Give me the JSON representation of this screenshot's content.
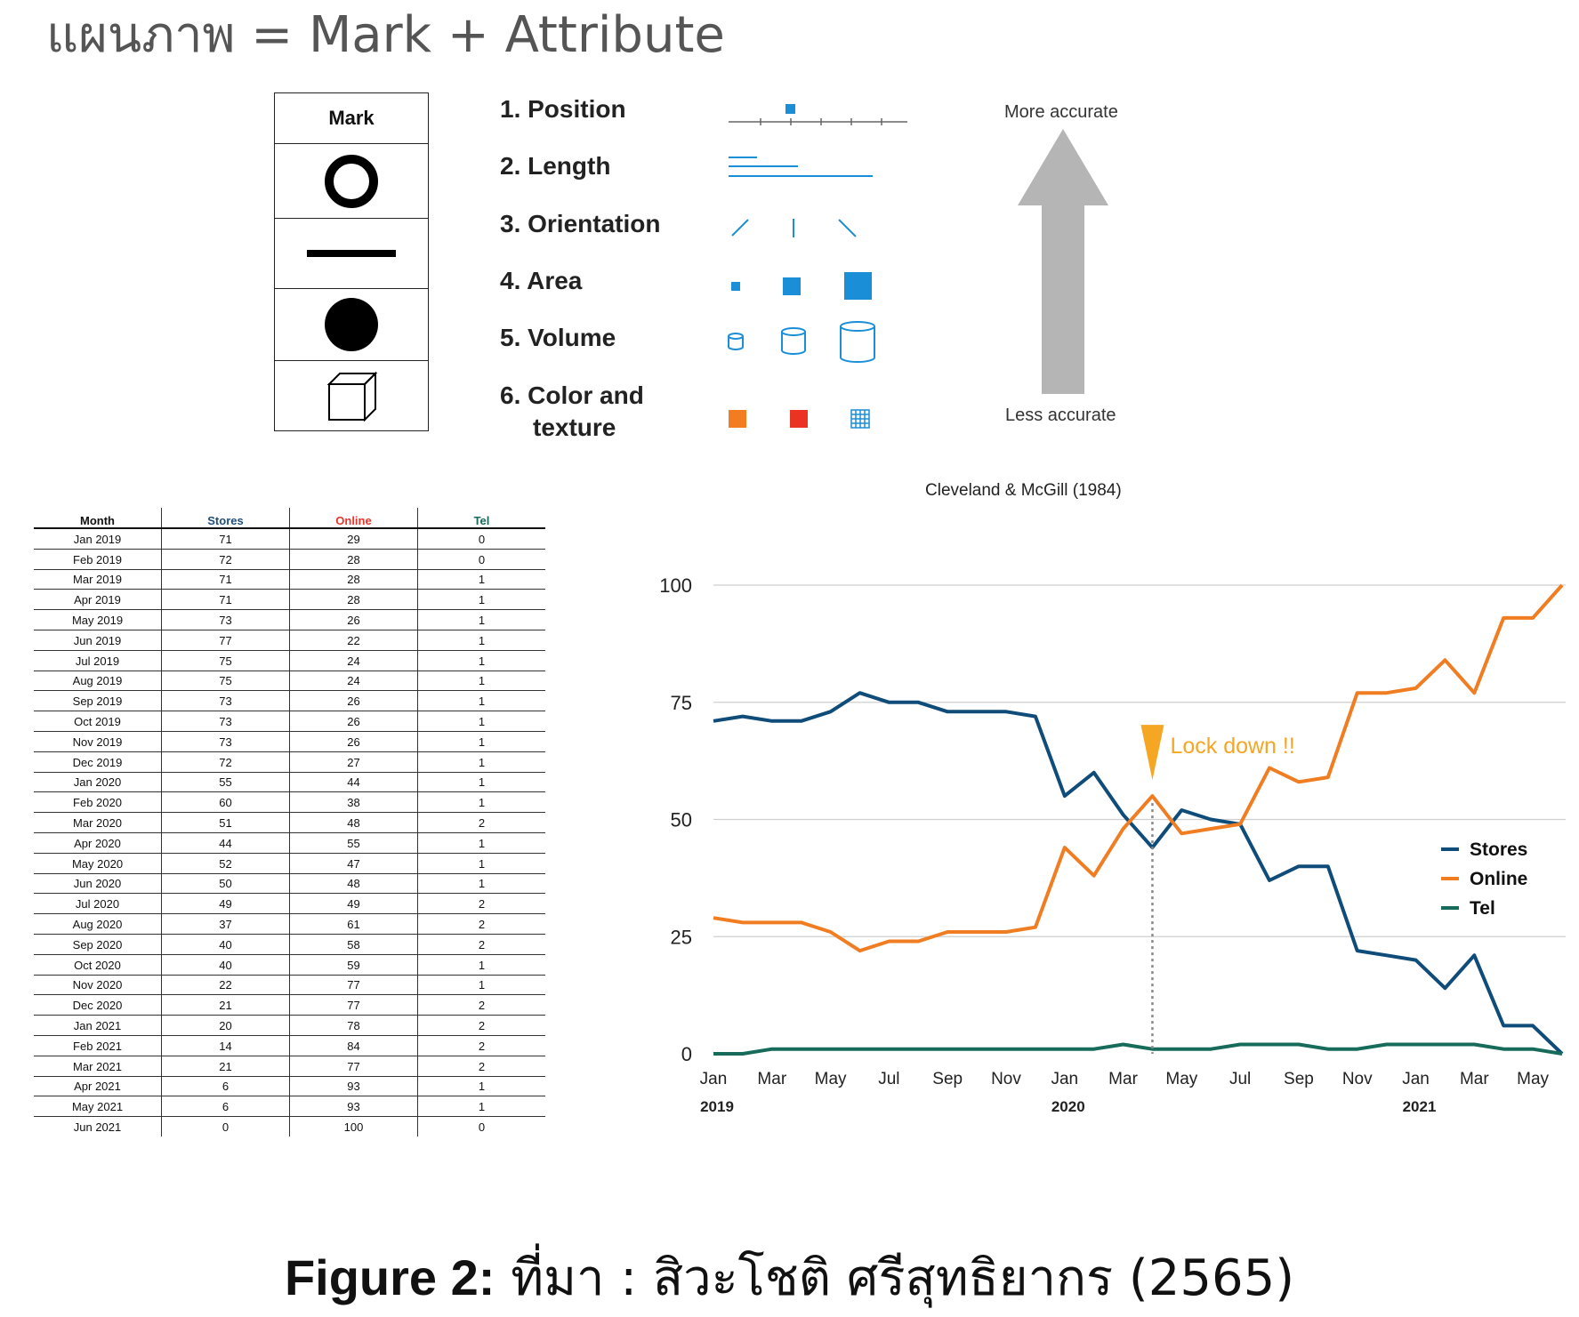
{
  "page": {
    "title": "แผนภาพ = Mark + Attribute",
    "caption_bold": "Figure 2:",
    "caption_rest": " ที่มา : สิวะโชติ ศรีสุทธิยากร (2565)"
  },
  "marks": {
    "header": "Mark",
    "items": [
      "circle-outline-icon",
      "line-icon",
      "filled-circle-icon",
      "cube-icon"
    ]
  },
  "attributes": [
    {
      "label": "1. Position"
    },
    {
      "label": "2. Length"
    },
    {
      "label": "3. Orientation"
    },
    {
      "label": "4. Area"
    },
    {
      "label": "5. Volume"
    },
    {
      "label": "6. Color and",
      "label2": "texture"
    }
  ],
  "accuracy": {
    "top": "More accurate",
    "bottom": "Less accurate",
    "source": "Cleveland & McGill (1984)"
  },
  "colors": {
    "stores": "#0f4c7a",
    "online": "#f07d22",
    "tel": "#166b5a",
    "attr_blue": "#1a8ed6",
    "arrow_gray": "#b5b5b5",
    "annotation": "#f5a623",
    "orange_swatch": "#f47c20",
    "red_swatch": "#ea3323"
  },
  "table": {
    "headers": [
      "Month",
      "Stores",
      "Online",
      "Tel"
    ],
    "header_colors": [
      "#111111",
      "#1f4e79",
      "#e8342b",
      "#166b5a"
    ],
    "rows": [
      [
        "Jan 2019",
        "71",
        "29",
        "0"
      ],
      [
        "Feb 2019",
        "72",
        "28",
        "0"
      ],
      [
        "Mar 2019",
        "71",
        "28",
        "1"
      ],
      [
        "Apr 2019",
        "71",
        "28",
        "1"
      ],
      [
        "May 2019",
        "73",
        "26",
        "1"
      ],
      [
        "Jun 2019",
        "77",
        "22",
        "1"
      ],
      [
        "Jul 2019",
        "75",
        "24",
        "1"
      ],
      [
        "Aug 2019",
        "75",
        "24",
        "1"
      ],
      [
        "Sep 2019",
        "73",
        "26",
        "1"
      ],
      [
        "Oct 2019",
        "73",
        "26",
        "1"
      ],
      [
        "Nov 2019",
        "73",
        "26",
        "1"
      ],
      [
        "Dec 2019",
        "72",
        "27",
        "1"
      ],
      [
        "Jan 2020",
        "55",
        "44",
        "1"
      ],
      [
        "Feb 2020",
        "60",
        "38",
        "1"
      ],
      [
        "Mar 2020",
        "51",
        "48",
        "2"
      ],
      [
        "Apr 2020",
        "44",
        "55",
        "1"
      ],
      [
        "May 2020",
        "52",
        "47",
        "1"
      ],
      [
        "Jun 2020",
        "50",
        "48",
        "1"
      ],
      [
        "Jul 2020",
        "49",
        "49",
        "2"
      ],
      [
        "Aug 2020",
        "37",
        "61",
        "2"
      ],
      [
        "Sep 2020",
        "40",
        "58",
        "2"
      ],
      [
        "Oct 2020",
        "40",
        "59",
        "1"
      ],
      [
        "Nov 2020",
        "22",
        "77",
        "1"
      ],
      [
        "Dec 2020",
        "21",
        "77",
        "2"
      ],
      [
        "Jan 2021",
        "20",
        "78",
        "2"
      ],
      [
        "Feb 2021",
        "14",
        "84",
        "2"
      ],
      [
        "Mar 2021",
        "21",
        "77",
        "2"
      ],
      [
        "Apr 2021",
        "6",
        "93",
        "1"
      ],
      [
        "May 2021",
        "6",
        "93",
        "1"
      ],
      [
        "Jun 2021",
        "0",
        "100",
        "0"
      ]
    ]
  },
  "chart_data": {
    "type": "line",
    "title": "",
    "xlabel": "",
    "ylabel": "",
    "ylim": [
      0,
      100
    ],
    "yticks": [
      0,
      25,
      50,
      75,
      100
    ],
    "grid": true,
    "legend_position": "right",
    "x": [
      "Jan 2019",
      "Feb 2019",
      "Mar 2019",
      "Apr 2019",
      "May 2019",
      "Jun 2019",
      "Jul 2019",
      "Aug 2019",
      "Sep 2019",
      "Oct 2019",
      "Nov 2019",
      "Dec 2019",
      "Jan 2020",
      "Feb 2020",
      "Mar 2020",
      "Apr 2020",
      "May 2020",
      "Jun 2020",
      "Jul 2020",
      "Aug 2020",
      "Sep 2020",
      "Oct 2020",
      "Nov 2020",
      "Dec 2020",
      "Jan 2021",
      "Feb 2021",
      "Mar 2021",
      "Apr 2021",
      "May 2021",
      "Jun 2021"
    ],
    "x_tick_labels": [
      "Jan",
      "Mar",
      "May",
      "Jul",
      "Sep",
      "Nov",
      "Jan",
      "Mar",
      "May",
      "Jul",
      "Sep",
      "Nov",
      "Jan",
      "Mar",
      "May"
    ],
    "x_year_labels": [
      {
        "label": "2019",
        "index": 0
      },
      {
        "label": "2020",
        "index": 12
      },
      {
        "label": "2021",
        "index": 24
      }
    ],
    "series": [
      {
        "name": "Stores",
        "values": [
          71,
          72,
          71,
          71,
          73,
          77,
          75,
          75,
          73,
          73,
          73,
          72,
          55,
          60,
          51,
          44,
          52,
          50,
          49,
          37,
          40,
          40,
          22,
          21,
          20,
          14,
          21,
          6,
          6,
          0
        ]
      },
      {
        "name": "Online",
        "values": [
          29,
          28,
          28,
          28,
          26,
          22,
          24,
          24,
          26,
          26,
          26,
          27,
          44,
          38,
          48,
          55,
          47,
          48,
          49,
          61,
          58,
          59,
          77,
          77,
          78,
          84,
          77,
          93,
          93,
          100
        ]
      },
      {
        "name": "Tel",
        "values": [
          0,
          0,
          1,
          1,
          1,
          1,
          1,
          1,
          1,
          1,
          1,
          1,
          1,
          1,
          2,
          1,
          1,
          1,
          2,
          2,
          2,
          1,
          1,
          2,
          2,
          2,
          2,
          1,
          1,
          0
        ]
      }
    ],
    "annotation": {
      "text": "Lock down !!",
      "x": "Apr 2020"
    }
  }
}
